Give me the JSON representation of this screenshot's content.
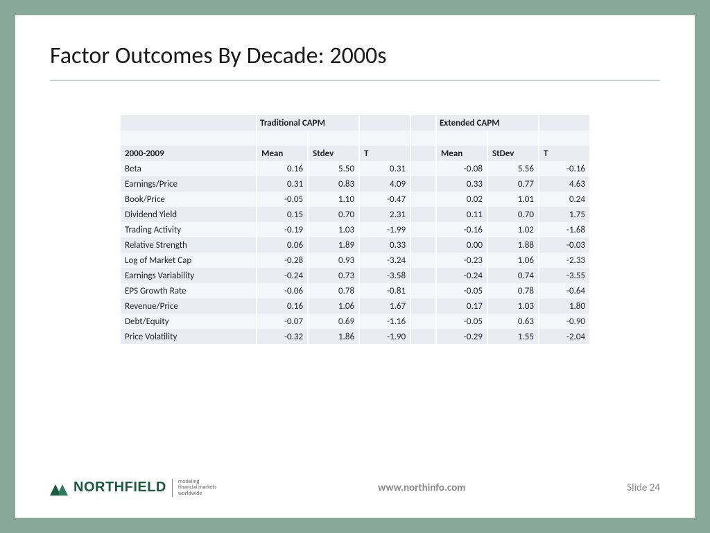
{
  "title": "Factor Outcomes By Decade: 2000s",
  "table": {
    "groupHeaders": {
      "left": "Traditional CAPM",
      "right": "Extended CAPM"
    },
    "period": "2000-2009",
    "subHeaders": {
      "mean": "Mean",
      "stdev1": "Stdev",
      "t": "T",
      "stdev2": "StDev"
    },
    "rows": [
      {
        "label": "Beta",
        "m1": "0.16",
        "s1": "5.50",
        "t1": "0.31",
        "m2": "-0.08",
        "s2": "5.56",
        "t2": "-0.16"
      },
      {
        "label": "Earnings/Price",
        "m1": "0.31",
        "s1": "0.83",
        "t1": "4.09",
        "m2": "0.33",
        "s2": "0.77",
        "t2": "4.63"
      },
      {
        "label": "Book/Price",
        "m1": "-0.05",
        "s1": "1.10",
        "t1": "-0.47",
        "m2": "0.02",
        "s2": "1.01",
        "t2": "0.24"
      },
      {
        "label": "Dividend Yield",
        "m1": "0.15",
        "s1": "0.70",
        "t1": "2.31",
        "m2": "0.11",
        "s2": "0.70",
        "t2": "1.75"
      },
      {
        "label": "Trading Activity",
        "m1": "-0.19",
        "s1": "1.03",
        "t1": "-1.99",
        "m2": "-0.16",
        "s2": "1.02",
        "t2": "-1.68"
      },
      {
        "label": "Relative Strength",
        "m1": "0.06",
        "s1": "1.89",
        "t1": "0.33",
        "m2": "0.00",
        "s2": "1.88",
        "t2": "-0.03"
      },
      {
        "label": "Log of Market Cap",
        "m1": "-0.28",
        "s1": "0.93",
        "t1": "-3.24",
        "m2": "-0.23",
        "s2": "1.06",
        "t2": "-2.33"
      },
      {
        "label": "Earnings Variability",
        "m1": "-0.24",
        "s1": "0.73",
        "t1": "-3.58",
        "m2": "-0.24",
        "s2": "0.74",
        "t2": "-3.55"
      },
      {
        "label": "EPS Growth Rate",
        "m1": "-0.06",
        "s1": "0.78",
        "t1": "-0.81",
        "m2": "-0.05",
        "s2": "0.78",
        "t2": "-0.64"
      },
      {
        "label": "Revenue/Price",
        "m1": "0.16",
        "s1": "1.06",
        "t1": "1.67",
        "m2": "0.17",
        "s2": "1.03",
        "t2": "1.80"
      },
      {
        "label": "Debt/Equity",
        "m1": "-0.07",
        "s1": "0.69",
        "t1": "-1.16",
        "m2": "-0.05",
        "s2": "0.63",
        "t2": "-0.90"
      },
      {
        "label": "Price Volatility",
        "m1": "-0.32",
        "s1": "1.86",
        "t1": "-1.90",
        "m2": "-0.29",
        "s2": "1.55",
        "t2": "-2.04"
      }
    ],
    "colors": {
      "rowA": "#e9edf3",
      "rowB": "#f4f6fa"
    }
  },
  "footer": {
    "brandName": "NORTHFIELD",
    "tagline1": "modeling",
    "tagline2": "financial markets",
    "tagline3": "worldwide",
    "url": "www.northinfo.com",
    "slideLabel": "Slide 24",
    "brandColor": "#1b5a3f"
  },
  "frame": {
    "border": "#88a99a",
    "background": "#ffffff"
  }
}
